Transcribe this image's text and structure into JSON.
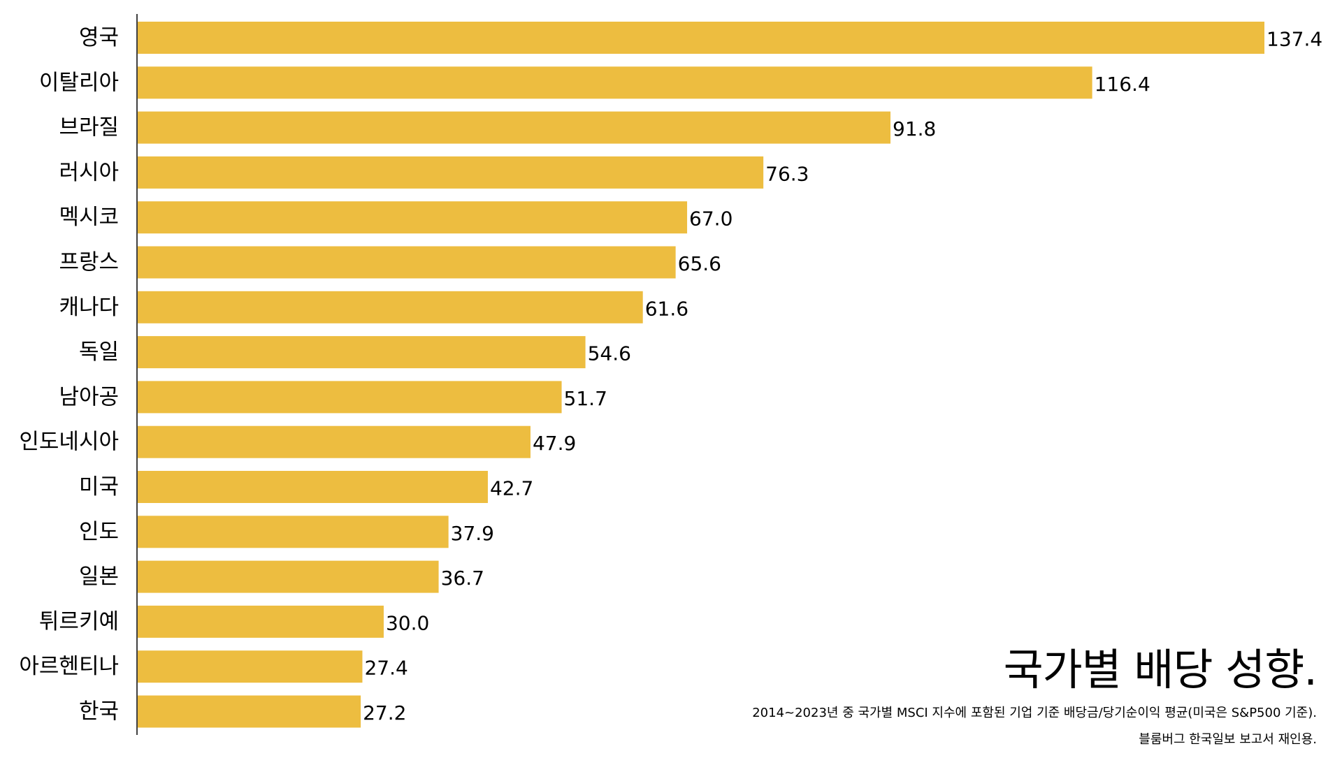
{
  "chart_data": {
    "type": "bar",
    "orientation": "horizontal",
    "title": "국가별 배당 성향.",
    "subtitle": "2014~2023년 중 국가별 MSCI 지수에 포함된 기업 기준 배당금/당기순이익 평균(미국은 S&P500 기준).",
    "source": "블룸버그 한국일보 보고서 재인용.",
    "categories": [
      "영국",
      "이탈리아",
      "브라질",
      "러시아",
      "멕시코",
      "프랑스",
      "캐나다",
      "독일",
      "남아공",
      "인도네시아",
      "미국",
      "인도",
      "일본",
      "튀르키예",
      "아르헨티나",
      "한국"
    ],
    "values": [
      137.4,
      116.4,
      91.8,
      76.3,
      67.0,
      65.6,
      61.6,
      54.6,
      51.7,
      47.9,
      42.7,
      37.9,
      36.7,
      30.0,
      27.4,
      27.2
    ],
    "value_labels": [
      "137.4",
      "116.4",
      "91.8",
      "76.3",
      "67.0",
      "65.6",
      "61.6",
      "54.6",
      "51.7",
      "47.9",
      "42.7",
      "37.9",
      "36.7",
      "30.0",
      "27.4",
      "27.2"
    ],
    "xlabel": "",
    "ylabel": "",
    "xlim": [
      0,
      137.4
    ],
    "grid": false,
    "legend": "none",
    "colors": {
      "bar": "#EDBD40",
      "axis": "#000000",
      "text": "#000000"
    }
  }
}
